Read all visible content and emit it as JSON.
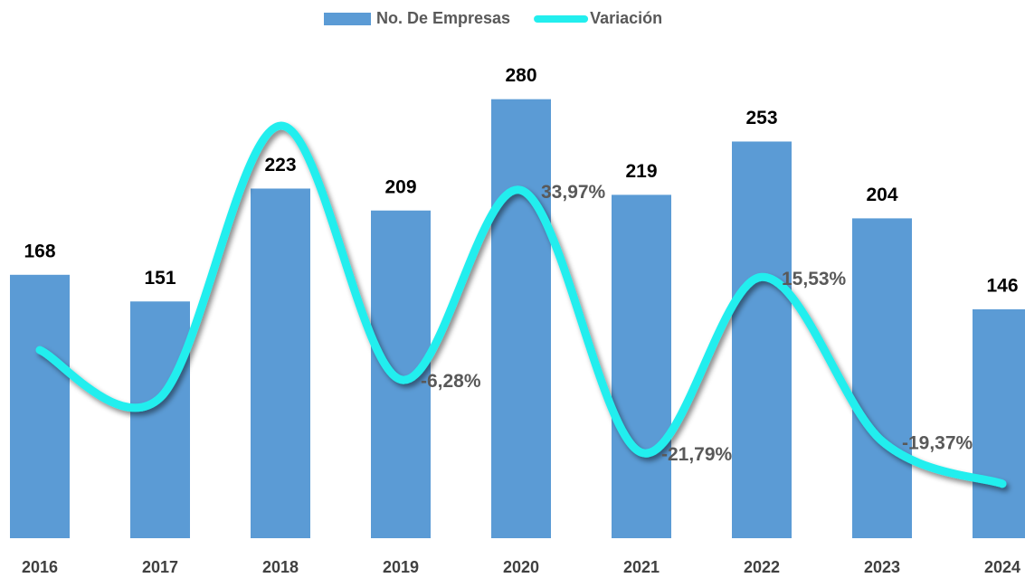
{
  "chart_data": {
    "type": "bar+line",
    "categories": [
      "2016",
      "2017",
      "2018",
      "2019",
      "2020",
      "2021",
      "2022",
      "2023",
      "2024"
    ],
    "series": [
      {
        "name": "No. De Empresas",
        "type": "bar",
        "color": "#5b9bd5",
        "values": [
          168,
          151,
          223,
          209,
          280,
          219,
          253,
          204,
          146
        ]
      },
      {
        "name": "Variación",
        "type": "line",
        "axis": "y2",
        "color": "#22eeee",
        "values": [
          0,
          -10.12,
          47.68,
          -6.28,
          33.97,
          -21.79,
          15.53,
          -19.37,
          -28.43
        ],
        "value_labels": [
          null,
          null,
          null,
          "-6,28%",
          "33,97%",
          "-21,79%",
          "15,53%",
          "-19,37%",
          null
        ]
      }
    ],
    "ylim": [
      0,
      300
    ],
    "y2lim": [
      -40,
      60
    ],
    "legend": "top"
  }
}
